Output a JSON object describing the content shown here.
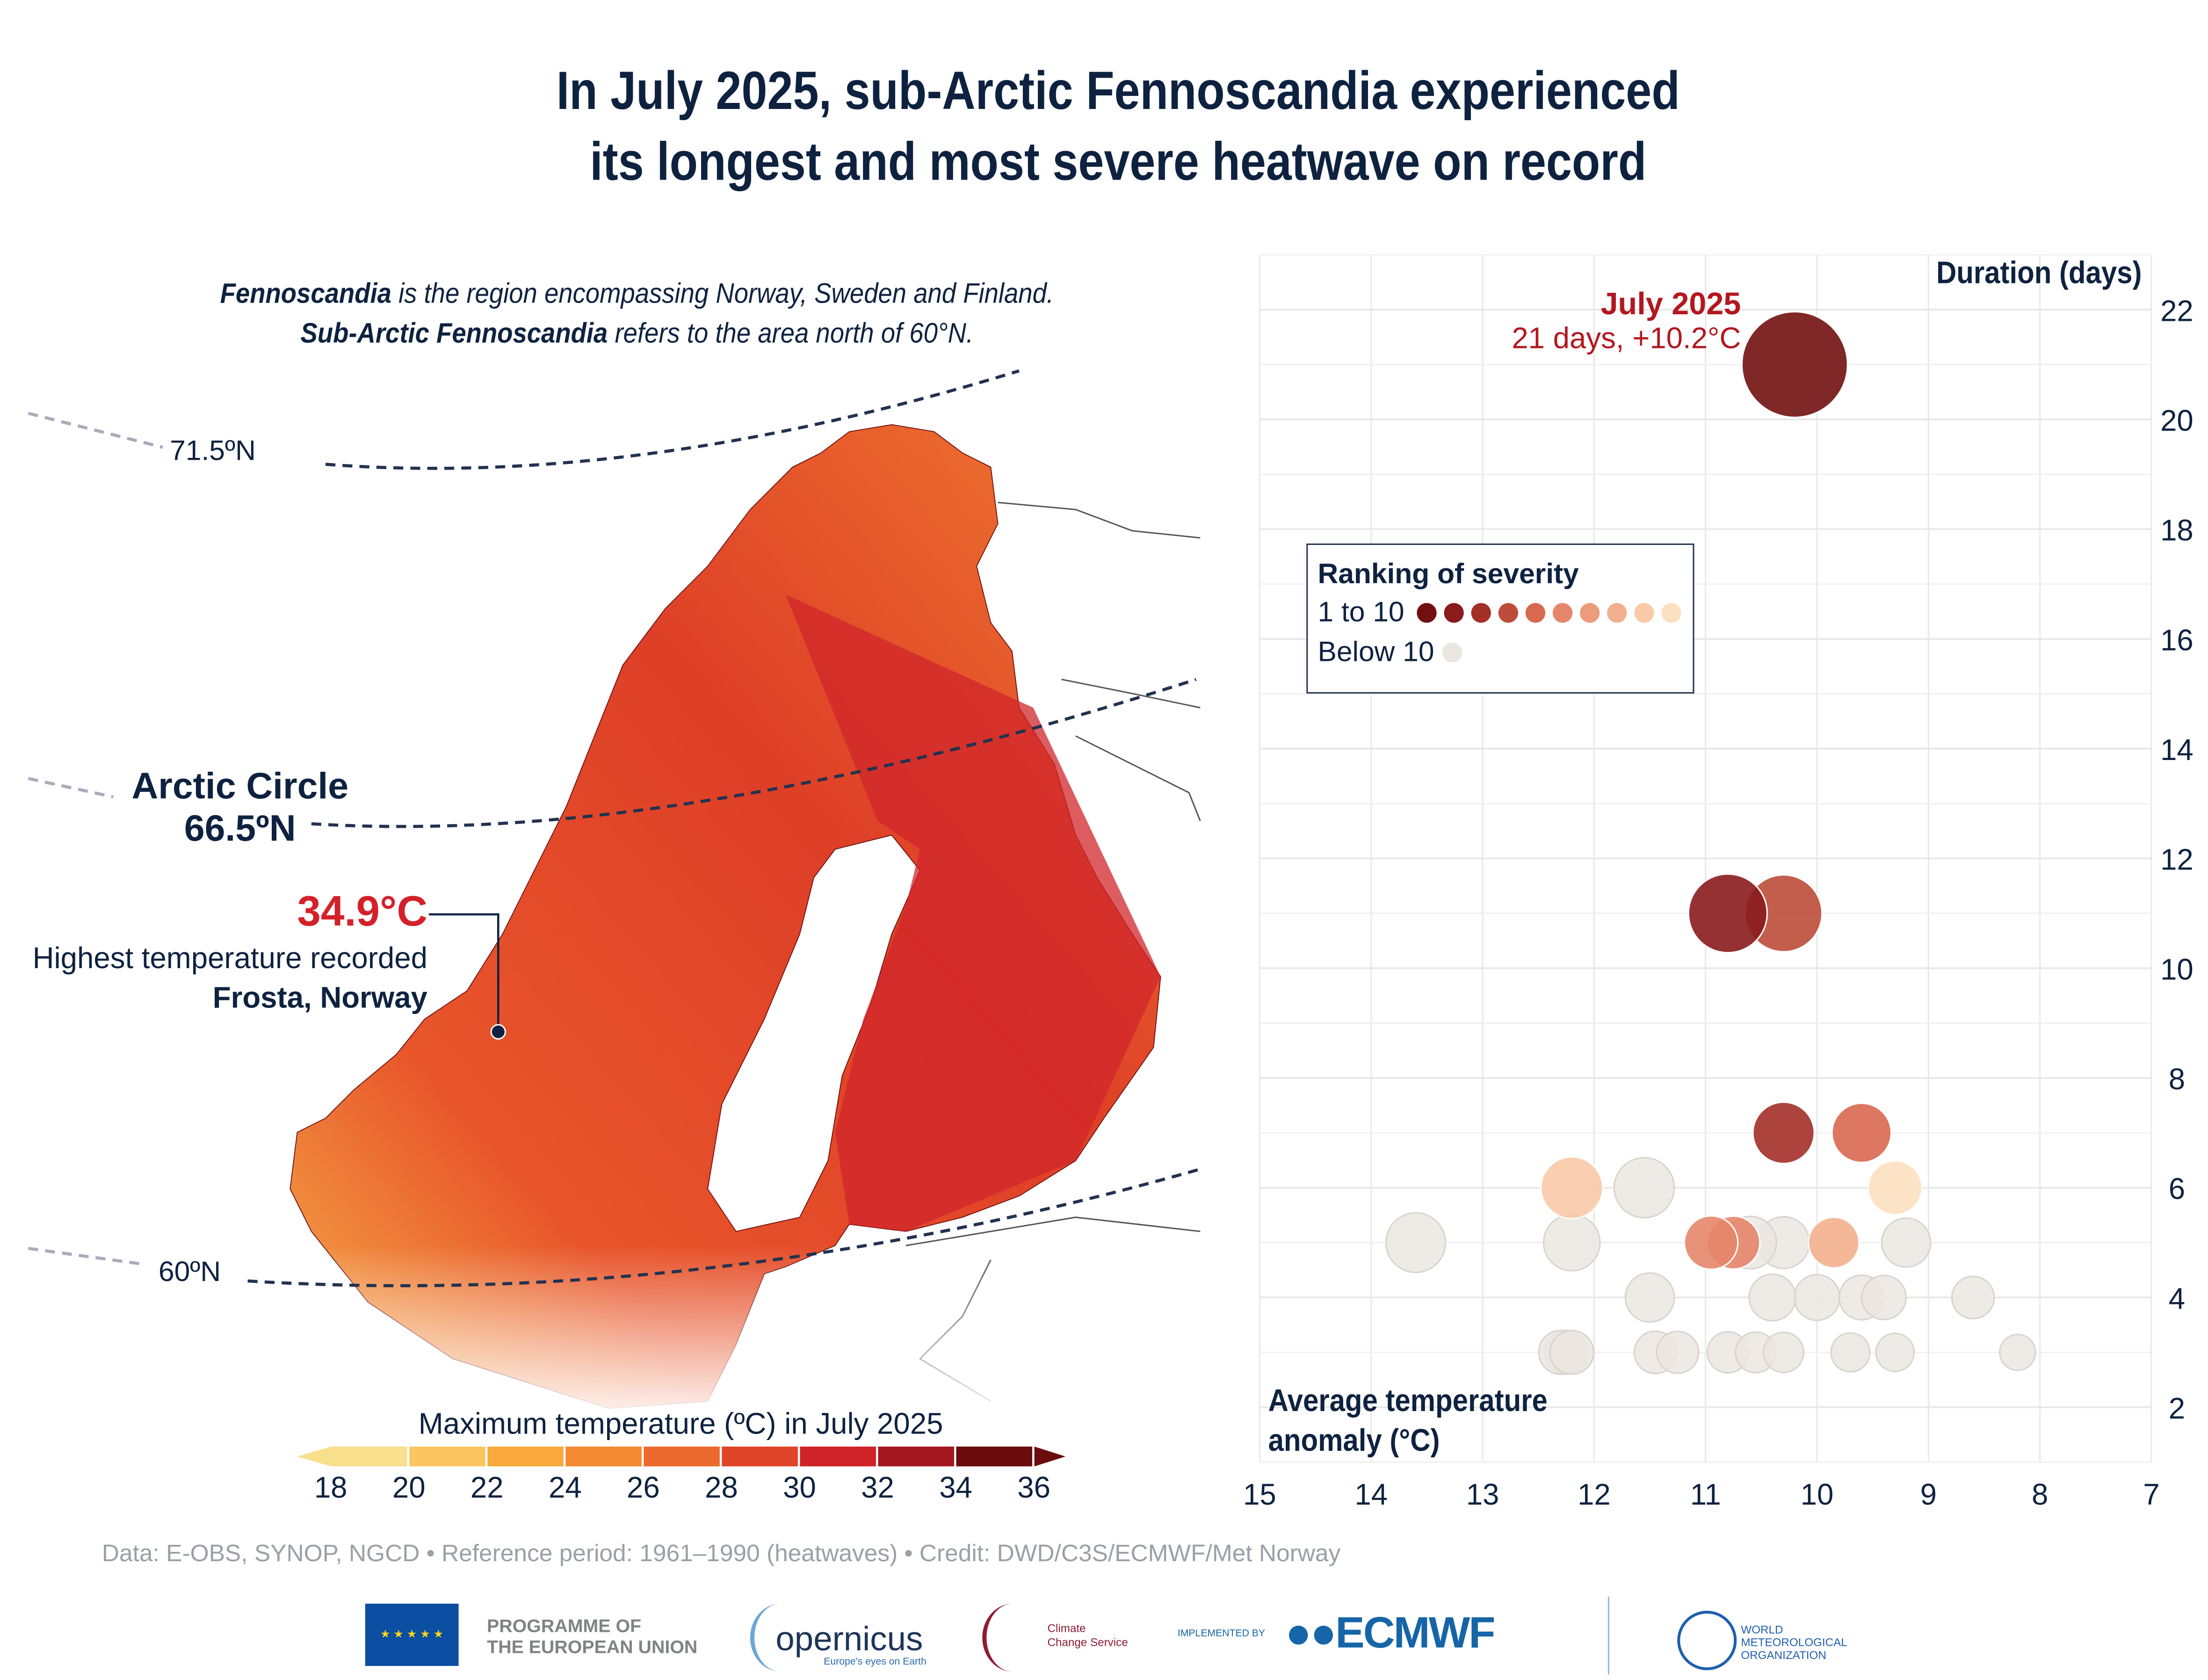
{
  "title_line1": "In July 2025, sub-Arctic Fennoscandia experienced",
  "title_line2": "its longest and most severe heatwave on record",
  "intro": {
    "term1": "Fennoscandia",
    "text1": " is the region encompassing Norway, Sweden and Finland.",
    "term2": "Sub-Arctic Fennoscandia",
    "text2": " refers to the area north of 60°N."
  },
  "map": {
    "latitudes": [
      "71.5ºN",
      "Arctic Circle",
      "66.5ºN",
      "60ºN"
    ],
    "highlight": {
      "value": "34.9°C",
      "caption": "Highest temperature recorded",
      "location": "Frosta, Norway"
    },
    "colorbar": {
      "title": "Maximum temperature (ºC) in July 2025",
      "ticks": [
        "18",
        "20",
        "22",
        "24",
        "26",
        "28",
        "30",
        "32",
        "34",
        "36"
      ],
      "colors": [
        "#f8df8c",
        "#fbc660",
        "#f9a93b",
        "#f38a31",
        "#ec6a2d",
        "#e04428",
        "#cf2329",
        "#a6181f",
        "#6a0b0d"
      ]
    }
  },
  "chart_data": {
    "type": "scatter",
    "xlabel": "Average temperature anomaly (°C)",
    "ylabel": "Duration (days)",
    "xlim": [
      15,
      7
    ],
    "ylim": [
      1,
      23
    ],
    "x_ticks": [
      "15",
      "14",
      "13",
      "12",
      "11",
      "10",
      "9",
      "8",
      "7"
    ],
    "y_ticks": [
      "2",
      "4",
      "6",
      "8",
      "10",
      "12",
      "14",
      "16",
      "18",
      "20",
      "22"
    ],
    "grid": true,
    "annotation": {
      "title": "July 2025",
      "text": "21 days, +10.2°C"
    },
    "legend": {
      "title": "Ranking of severity",
      "ranked_label": "1 to 10",
      "below_label": "Below 10",
      "placement": "upper-left",
      "rank_colors": [
        "#72100f",
        "#8a1b1c",
        "#a32f27",
        "#bd4c3a",
        "#d96850",
        "#e5866a",
        "#ec9b7c",
        "#f3b08e",
        "#f9c9a8",
        "#fde0bf"
      ],
      "below_color": "#ebe6e0"
    },
    "points": [
      {
        "anomaly": 13.6,
        "days": 5,
        "rank": null
      },
      {
        "anomaly": 12.2,
        "days": 5,
        "rank": null
      },
      {
        "anomaly": 11.55,
        "days": 6,
        "rank": null
      },
      {
        "anomaly": 11.5,
        "days": 4,
        "rank": null
      },
      {
        "anomaly": 12.25,
        "days": 3,
        "rank": null
      },
      {
        "anomaly": 12.3,
        "days": 3,
        "rank": null
      },
      {
        "anomaly": 12.2,
        "days": 3,
        "rank": null
      },
      {
        "anomaly": 11.45,
        "days": 3,
        "rank": null
      },
      {
        "anomaly": 11.25,
        "days": 3,
        "rank": null
      },
      {
        "anomaly": 10.8,
        "days": 3,
        "rank": null
      },
      {
        "anomaly": 10.55,
        "days": 3,
        "rank": null
      },
      {
        "anomaly": 10.3,
        "days": 3,
        "rank": null
      },
      {
        "anomaly": 9.7,
        "days": 3,
        "rank": null
      },
      {
        "anomaly": 9.3,
        "days": 3,
        "rank": null
      },
      {
        "anomaly": 8.6,
        "days": 4,
        "rank": null
      },
      {
        "anomaly": 8.2,
        "days": 3,
        "rank": null
      },
      {
        "anomaly": 9.2,
        "days": 5,
        "rank": null
      },
      {
        "anomaly": 10.0,
        "days": 4,
        "rank": null
      },
      {
        "anomaly": 10.4,
        "days": 4,
        "rank": null
      },
      {
        "anomaly": 9.6,
        "days": 4,
        "rank": null
      },
      {
        "anomaly": 9.4,
        "days": 4,
        "rank": null
      },
      {
        "anomaly": 10.3,
        "days": 5,
        "rank": null
      },
      {
        "anomaly": 10.6,
        "days": 5,
        "rank": null
      },
      {
        "anomaly": 9.3,
        "days": 6,
        "rank": 10
      },
      {
        "anomaly": 12.2,
        "days": 6,
        "rank": 9
      },
      {
        "anomaly": 9.85,
        "days": 5,
        "rank": 8
      },
      {
        "anomaly": 10.75,
        "days": 5,
        "rank": 6
      },
      {
        "anomaly": 10.95,
        "days": 5,
        "rank": 6
      },
      {
        "anomaly": 9.6,
        "days": 7,
        "rank": 5
      },
      {
        "anomaly": 10.3,
        "days": 7,
        "rank": 3
      },
      {
        "anomaly": 10.3,
        "days": 11,
        "rank": 4
      },
      {
        "anomaly": 10.8,
        "days": 11,
        "rank": 2
      },
      {
        "anomaly": 10.2,
        "days": 21,
        "rank": 1
      }
    ]
  },
  "footer": {
    "credit": "Data: E-OBS, SYNOP, NGCD • Reference period: 1961–1990 (heatwaves) • Credit: DWD/C3S/ECMWF/Met Norway",
    "eu_line1": "PROGRAMME OF",
    "eu_line2": "THE EUROPEAN UNION",
    "copernicus": "opernicus",
    "copernicus_tag": "Europe's eyes on Earth",
    "c3s_line1": "Climate",
    "c3s_line2": "Change Service",
    "implemented": "IMPLEMENTED BY",
    "ecmwf": "ECMWF",
    "wmo_line1": "WORLD",
    "wmo_line2": "METEOROLOGICAL",
    "wmo_line3": "ORGANIZATION"
  }
}
